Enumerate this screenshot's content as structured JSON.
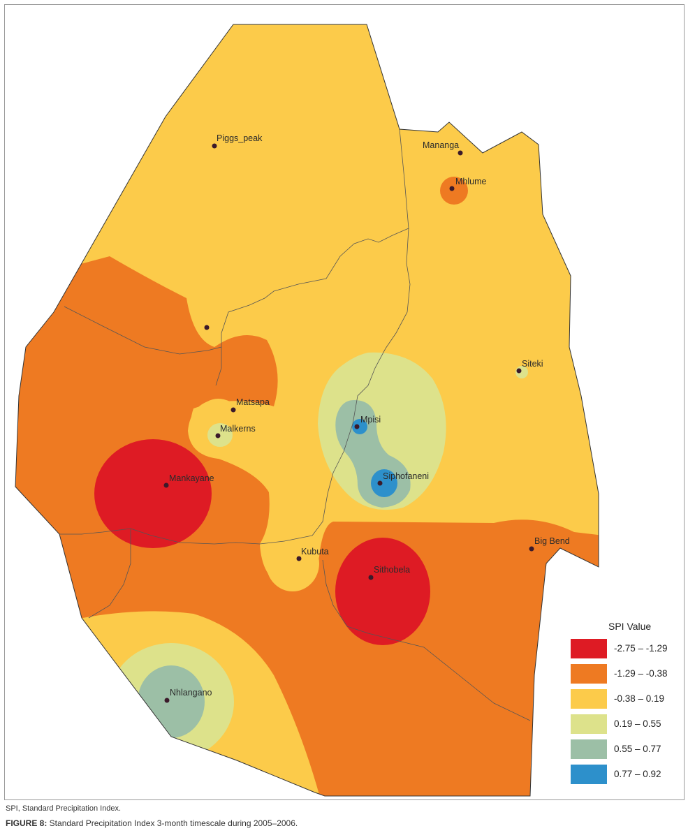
{
  "legend": {
    "title": "SPI Value",
    "items": [
      {
        "label": "-2.75 – -1.29",
        "color": "#de1b24"
      },
      {
        "label": "-1.29 – -0.38",
        "color": "#ee7a22"
      },
      {
        "label": "-0.38 – 0.19",
        "color": "#fccb4a"
      },
      {
        "label": "0.19 – 0.55",
        "color": "#dde28b"
      },
      {
        "label": "0.55 – 0.77",
        "color": "#9cbfa6"
      },
      {
        "label": "0.77 – 0.92",
        "color": "#2d90cb"
      }
    ]
  },
  "stations": [
    {
      "name": "Piggs_peak"
    },
    {
      "name": "Mananga"
    },
    {
      "name": "Mhlume"
    },
    {
      "name": "Siteki"
    },
    {
      "name": "Matsapa"
    },
    {
      "name": "Malkerns"
    },
    {
      "name": "Mpisi"
    },
    {
      "name": "Siphofaneni"
    },
    {
      "name": "Mankayane"
    },
    {
      "name": "Big Bend"
    },
    {
      "name": "Kubuta"
    },
    {
      "name": "Sithobela"
    },
    {
      "name": "Nhlangano"
    }
  ],
  "footnote": "SPI, Standard Precipitation Index.",
  "caption": {
    "label": "FIGURE 8:",
    "text": " Standard Precipitation Index 3-month timescale during 2005–2006."
  }
}
